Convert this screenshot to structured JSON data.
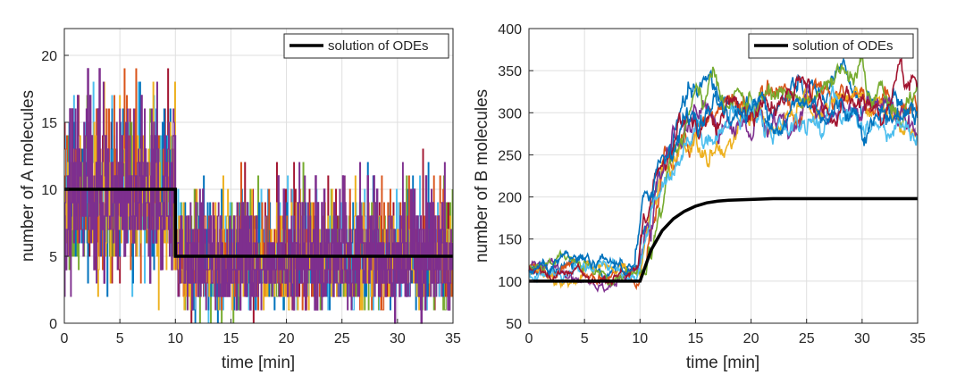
{
  "palette": [
    "#0072BD",
    "#D95319",
    "#EDB120",
    "#7E2F8E",
    "#77AC30",
    "#4DBEEE",
    "#A2142F"
  ],
  "ode_color": "#000000",
  "chart_data": [
    {
      "type": "line",
      "xlabel": "time [min]",
      "ylabel": "number of A molecules",
      "xlim": [
        0,
        35
      ],
      "ylim": [
        0,
        22
      ],
      "xticks": [
        0,
        5,
        10,
        15,
        20,
        25,
        30,
        35
      ],
      "yticks": [
        0,
        5,
        10,
        15,
        20
      ],
      "grid": true,
      "legend": {
        "location": "top-right",
        "entries": [
          "solution of ODEs"
        ]
      },
      "ode_series": {
        "name": "solution of ODEs",
        "x": [
          0,
          10,
          10,
          35
        ],
        "y": [
          10,
          10,
          5,
          5
        ]
      },
      "stochastic_runs": 8,
      "stochastic_range": [
        {
          "t_from": 0,
          "t_to": 10,
          "typical_min": 3,
          "typical_max": 18,
          "peak_max": 22
        },
        {
          "t_from": 10,
          "t_to": 35,
          "typical_min": 0,
          "typical_max": 12,
          "peak_max": 12
        }
      ]
    },
    {
      "type": "line",
      "xlabel": "time [min]",
      "ylabel": "number of B molecules",
      "xlim": [
        0,
        35
      ],
      "ylim": [
        50,
        400
      ],
      "xticks": [
        0,
        5,
        10,
        15,
        20,
        25,
        30,
        35
      ],
      "yticks": [
        50,
        100,
        150,
        200,
        250,
        300,
        350,
        400
      ],
      "grid": true,
      "legend": {
        "location": "top-right",
        "entries": [
          "solution of ODEs"
        ]
      },
      "ode_series": {
        "name": "solution of ODEs",
        "x": [
          0,
          10,
          11,
          12,
          13,
          14,
          15,
          16,
          17,
          18,
          20,
          22,
          25,
          35
        ],
        "y": [
          100,
          100,
          137,
          160,
          174,
          183,
          189,
          193,
          195,
          196,
          197,
          198,
          198,
          198
        ]
      },
      "stochastic_runs": 8,
      "stochastic_mean": {
        "x": [
          0,
          10,
          12,
          14,
          16,
          20,
          25,
          30,
          35
        ],
        "y": [
          110,
          110,
          225,
          285,
          300,
          295,
          300,
          298,
          295
        ]
      },
      "stochastic_spread": 35
    }
  ]
}
